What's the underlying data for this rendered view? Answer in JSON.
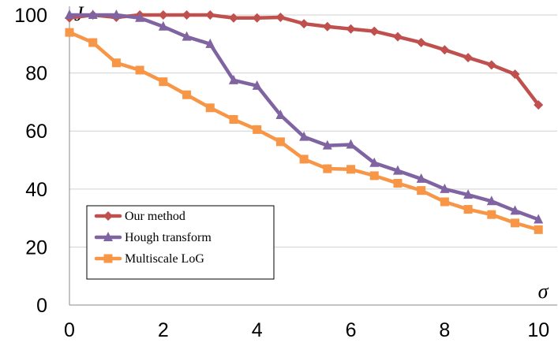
{
  "chart_data": {
    "type": "line",
    "xlabel": "σ",
    "ylabel": "J",
    "xlim": [
      0,
      10.4
    ],
    "ylim": [
      0,
      103
    ],
    "xticks": [
      0,
      2,
      4,
      6,
      8,
      10
    ],
    "yticks": [
      0,
      20,
      40,
      60,
      80,
      100
    ],
    "grid": true,
    "legend_position": "bottom-left",
    "x": [
      0,
      0.5,
      1,
      1.5,
      2,
      2.5,
      3,
      3.5,
      4,
      4.5,
      5,
      5.5,
      6,
      6.5,
      7,
      7.5,
      8,
      8.5,
      9,
      9.5,
      10
    ],
    "series": [
      {
        "name": "Our method",
        "color": "#c0504d",
        "marker": "diamond",
        "values": [
          99,
          100,
          99.2,
          100,
          100,
          100,
          100,
          99,
          99,
          99.2,
          97,
          96,
          95.2,
          94.4,
          92.5,
          90.5,
          88,
          85.3,
          82.8,
          79.6,
          69
        ]
      },
      {
        "name": "Hough transform",
        "color": "#8064a2",
        "marker": "triangle",
        "values": [
          100,
          100,
          100,
          99,
          96,
          92.5,
          90,
          77.5,
          75.6,
          65.5,
          58,
          55,
          55.3,
          49,
          46.3,
          43.5,
          40,
          38,
          35.8,
          32.5,
          29.5
        ]
      },
      {
        "name": "Multiscale LoG",
        "color": "#f79646",
        "marker": "square",
        "values": [
          94,
          90.5,
          83.5,
          81,
          77,
          72.5,
          68,
          64,
          60.5,
          56.3,
          50.3,
          47,
          46.8,
          44.6,
          42,
          39.5,
          35.6,
          33,
          31.2,
          28.3,
          26
        ]
      }
    ]
  }
}
